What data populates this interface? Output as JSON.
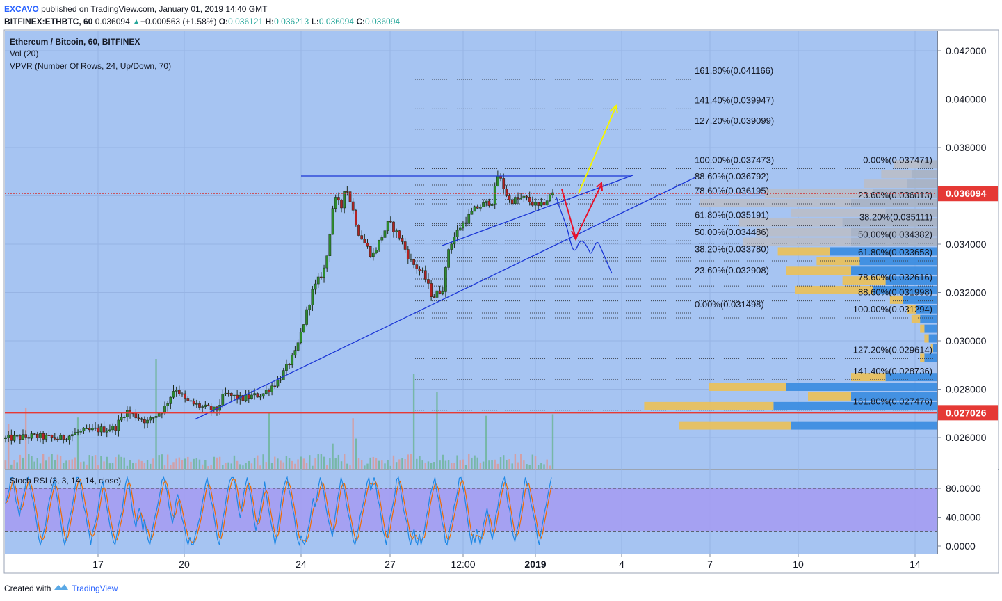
{
  "header": {
    "author": "EXCAVO",
    "published_text": "published on TradingView.com, January 01, 2019 14:40 GMT",
    "symbol": "BITFINEX:ETHBTC, 60",
    "last": "0.036094",
    "change": "+0.000563 (+1.58%)",
    "o_label": "O:",
    "o_value": "0.036121",
    "h_label": "H:",
    "h_value": "0.036213",
    "l_label": "L:",
    "l_value": "0.036094",
    "c_label": "C:",
    "c_value": "0.036094"
  },
  "legend": {
    "title": "Ethereum / Bitcoin, 60, BITFINEX",
    "vol": "Vol (20)",
    "vpvr": "VPVR (Number Of Rows, 24, Up/Down, 70)",
    "stoch": "Stoch RSI (3, 3, 14, 14, close)"
  },
  "footer": {
    "created": "Created with",
    "brand": "TradingView"
  },
  "colors": {
    "background": "#a6c4f2",
    "up": "#2e8b2e",
    "down": "#b22222",
    "trend": "#1a35d6",
    "price_badge": "#e53935",
    "stoch_band": "#a59bf2",
    "k_line": "#1e88e5",
    "d_line": "#ef6c00",
    "vpvr_up": "#3d8ee0",
    "vpvr_down": "#e8c15e",
    "vpvr_gray": "#b8bec9"
  },
  "chart_data": {
    "type": "candlestick",
    "title": "Ethereum / Bitcoin, 60, BITFINEX",
    "ylim": [
      0.0249,
      0.0426
    ],
    "y_ticks": [
      "0.042000",
      "0.040000",
      "0.038000",
      "0.036000",
      "0.034000",
      "0.032000",
      "0.030000",
      "0.028000",
      "0.026000"
    ],
    "x_ticks": [
      "17",
      "20",
      "24",
      "27",
      "12:00",
      "2019",
      "4",
      "7",
      "10",
      "14"
    ],
    "current_price": "0.036094",
    "level_price": "0.027026",
    "level_value": 0.027026,
    "resistance_value": 0.03682,
    "fib_left": [
      {
        "label": "161.80%(0.041166)",
        "value": 0.041166
      },
      {
        "label": "141.40%(0.039947)",
        "value": 0.039947
      },
      {
        "label": "127.20%(0.039099)",
        "value": 0.039099
      },
      {
        "label": "100.00%(0.037473)",
        "value": 0.037473
      },
      {
        "label": "88.60%(0.036792)",
        "value": 0.036792
      },
      {
        "label": "78.60%(0.036195)",
        "value": 0.036195
      },
      {
        "label": "61.80%(0.035191)",
        "value": 0.035191
      },
      {
        "label": "50.00%(0.034486)",
        "value": 0.034486
      },
      {
        "label": "38.20%(0.033780)",
        "value": 0.03378
      },
      {
        "label": "23.60%(0.032908)",
        "value": 0.032908
      },
      {
        "label": "0.00%(0.031498)",
        "value": 0.031498
      }
    ],
    "fib_right": [
      {
        "label": "0.00%(0.037471)",
        "value": 0.037471
      },
      {
        "label": "23.60%(0.036013)",
        "value": 0.036013
      },
      {
        "label": "38.20%(0.035111)",
        "value": 0.035111
      },
      {
        "label": "50.00%(0.034382)",
        "value": 0.034382
      },
      {
        "label": "61.80%(0.033653)",
        "value": 0.033653
      },
      {
        "label": "78.60%(0.032616)",
        "value": 0.032616
      },
      {
        "label": "88.60%(0.031998)",
        "value": 0.031998
      },
      {
        "label": "100.00%(0.031294)",
        "value": 0.031294
      },
      {
        "label": "127.20%(0.029614)",
        "value": 0.029614
      },
      {
        "label": "141.40%(0.028736)",
        "value": 0.028736
      },
      {
        "label": "161.80%(0.027476)",
        "value": 0.027476
      }
    ],
    "price_path": [
      {
        "t": 0,
        "p": 0.02595
      },
      {
        "t": 0.05,
        "p": 0.02605
      },
      {
        "t": 0.1,
        "p": 0.02595
      },
      {
        "t": 0.13,
        "p": 0.0262
      },
      {
        "t": 0.16,
        "p": 0.0263
      },
      {
        "t": 0.2,
        "p": 0.0264
      },
      {
        "t": 0.22,
        "p": 0.0271
      },
      {
        "t": 0.26,
        "p": 0.02665
      },
      {
        "t": 0.29,
        "p": 0.0272
      },
      {
        "t": 0.31,
        "p": 0.0281
      },
      {
        "t": 0.33,
        "p": 0.0275
      },
      {
        "t": 0.36,
        "p": 0.02725
      },
      {
        "t": 0.385,
        "p": 0.0271
      },
      {
        "t": 0.4,
        "p": 0.0278
      },
      {
        "t": 0.43,
        "p": 0.0276
      },
      {
        "t": 0.47,
        "p": 0.0278
      },
      {
        "t": 0.5,
        "p": 0.0284
      },
      {
        "t": 0.53,
        "p": 0.0295
      },
      {
        "t": 0.56,
        "p": 0.032
      },
      {
        "t": 0.585,
        "p": 0.0331
      },
      {
        "t": 0.6,
        "p": 0.0359
      },
      {
        "t": 0.615,
        "p": 0.0355
      },
      {
        "t": 0.62,
        "p": 0.0365
      },
      {
        "t": 0.63,
        "p": 0.0358
      },
      {
        "t": 0.645,
        "p": 0.0345
      },
      {
        "t": 0.67,
        "p": 0.0335
      },
      {
        "t": 0.7,
        "p": 0.0349
      },
      {
        "t": 0.72,
        "p": 0.0343
      },
      {
        "t": 0.74,
        "p": 0.0333
      },
      {
        "t": 0.765,
        "p": 0.0327
      },
      {
        "t": 0.78,
        "p": 0.0318
      },
      {
        "t": 0.8,
        "p": 0.0322
      },
      {
        "t": 0.81,
        "p": 0.0339
      },
      {
        "t": 0.83,
        "p": 0.0347
      },
      {
        "t": 0.86,
        "p": 0.0355
      },
      {
        "t": 0.89,
        "p": 0.0358
      },
      {
        "t": 0.9,
        "p": 0.0369
      },
      {
        "t": 0.92,
        "p": 0.0358
      },
      {
        "t": 0.95,
        "p": 0.0359
      },
      {
        "t": 0.975,
        "p": 0.0355
      },
      {
        "t": 1,
        "p": 0.03609
      }
    ],
    "vpvr": [
      {
        "price": 0.0373,
        "up": 0.4,
        "down": 0.6,
        "gray": true
      },
      {
        "price": 0.0369,
        "up": 0.6,
        "down": 0.7,
        "gray": true
      },
      {
        "price": 0.0365,
        "up": 0.7,
        "down": 1.0,
        "gray": true
      },
      {
        "price": 0.0361,
        "up": 1.5,
        "down": 2.5,
        "gray": true
      },
      {
        "price": 0.0357,
        "up": 2.0,
        "down": 3.5,
        "gray": true
      },
      {
        "price": 0.0353,
        "up": 1.2,
        "down": 2.2,
        "gray": true
      },
      {
        "price": 0.0349,
        "up": 2.2,
        "down": 2.4,
        "gray": true
      },
      {
        "price": 0.0345,
        "up": 2.0,
        "down": 2.2,
        "gray": true
      },
      {
        "price": 0.0341,
        "up": 2.0,
        "down": 2.5,
        "gray": true
      },
      {
        "price": 0.0337,
        "up": 2.5,
        "down": 1.2,
        "gray": false
      },
      {
        "price": 0.0333,
        "up": 1.8,
        "down": 1.0,
        "gray": false
      },
      {
        "price": 0.0329,
        "up": 2.0,
        "down": 1.5,
        "gray": false
      },
      {
        "price": 0.0325,
        "up": 1.2,
        "down": 1.0,
        "gray": false
      },
      {
        "price": 0.0321,
        "up": 1.5,
        "down": 1.8,
        "gray": false
      },
      {
        "price": 0.0317,
        "up": 0.8,
        "down": 0.3,
        "gray": false
      },
      {
        "price": 0.0313,
        "up": 0.5,
        "down": 0.2,
        "gray": false
      },
      {
        "price": 0.0309,
        "up": 0.4,
        "down": 0.2,
        "gray": false
      },
      {
        "price": 0.0305,
        "up": 0.3,
        "down": 0.1,
        "gray": false
      },
      {
        "price": 0.0301,
        "up": 0.2,
        "down": 0.1,
        "gray": false
      },
      {
        "price": 0.0297,
        "up": 0.1,
        "down": 0.05,
        "gray": false
      },
      {
        "price": 0.0293,
        "up": 0.3,
        "down": 0.1,
        "gray": false
      },
      {
        "price": 0.0285,
        "up": 1.2,
        "down": 0.8,
        "gray": false
      },
      {
        "price": 0.0281,
        "up": 3.5,
        "down": 1.8,
        "gray": false
      },
      {
        "price": 0.0277,
        "up": 2.0,
        "down": 1.0,
        "gray": false
      },
      {
        "price": 0.0273,
        "up": 3.8,
        "down": 3.0,
        "gray": false
      },
      {
        "price": 0.0265,
        "up": 3.4,
        "down": 2.6,
        "gray": false
      }
    ],
    "stoch": {
      "y_ticks": [
        "80.0000",
        "40.0000",
        "0.0000"
      ],
      "ylim": [
        -5,
        100
      ],
      "bands": [
        20,
        80
      ]
    }
  }
}
